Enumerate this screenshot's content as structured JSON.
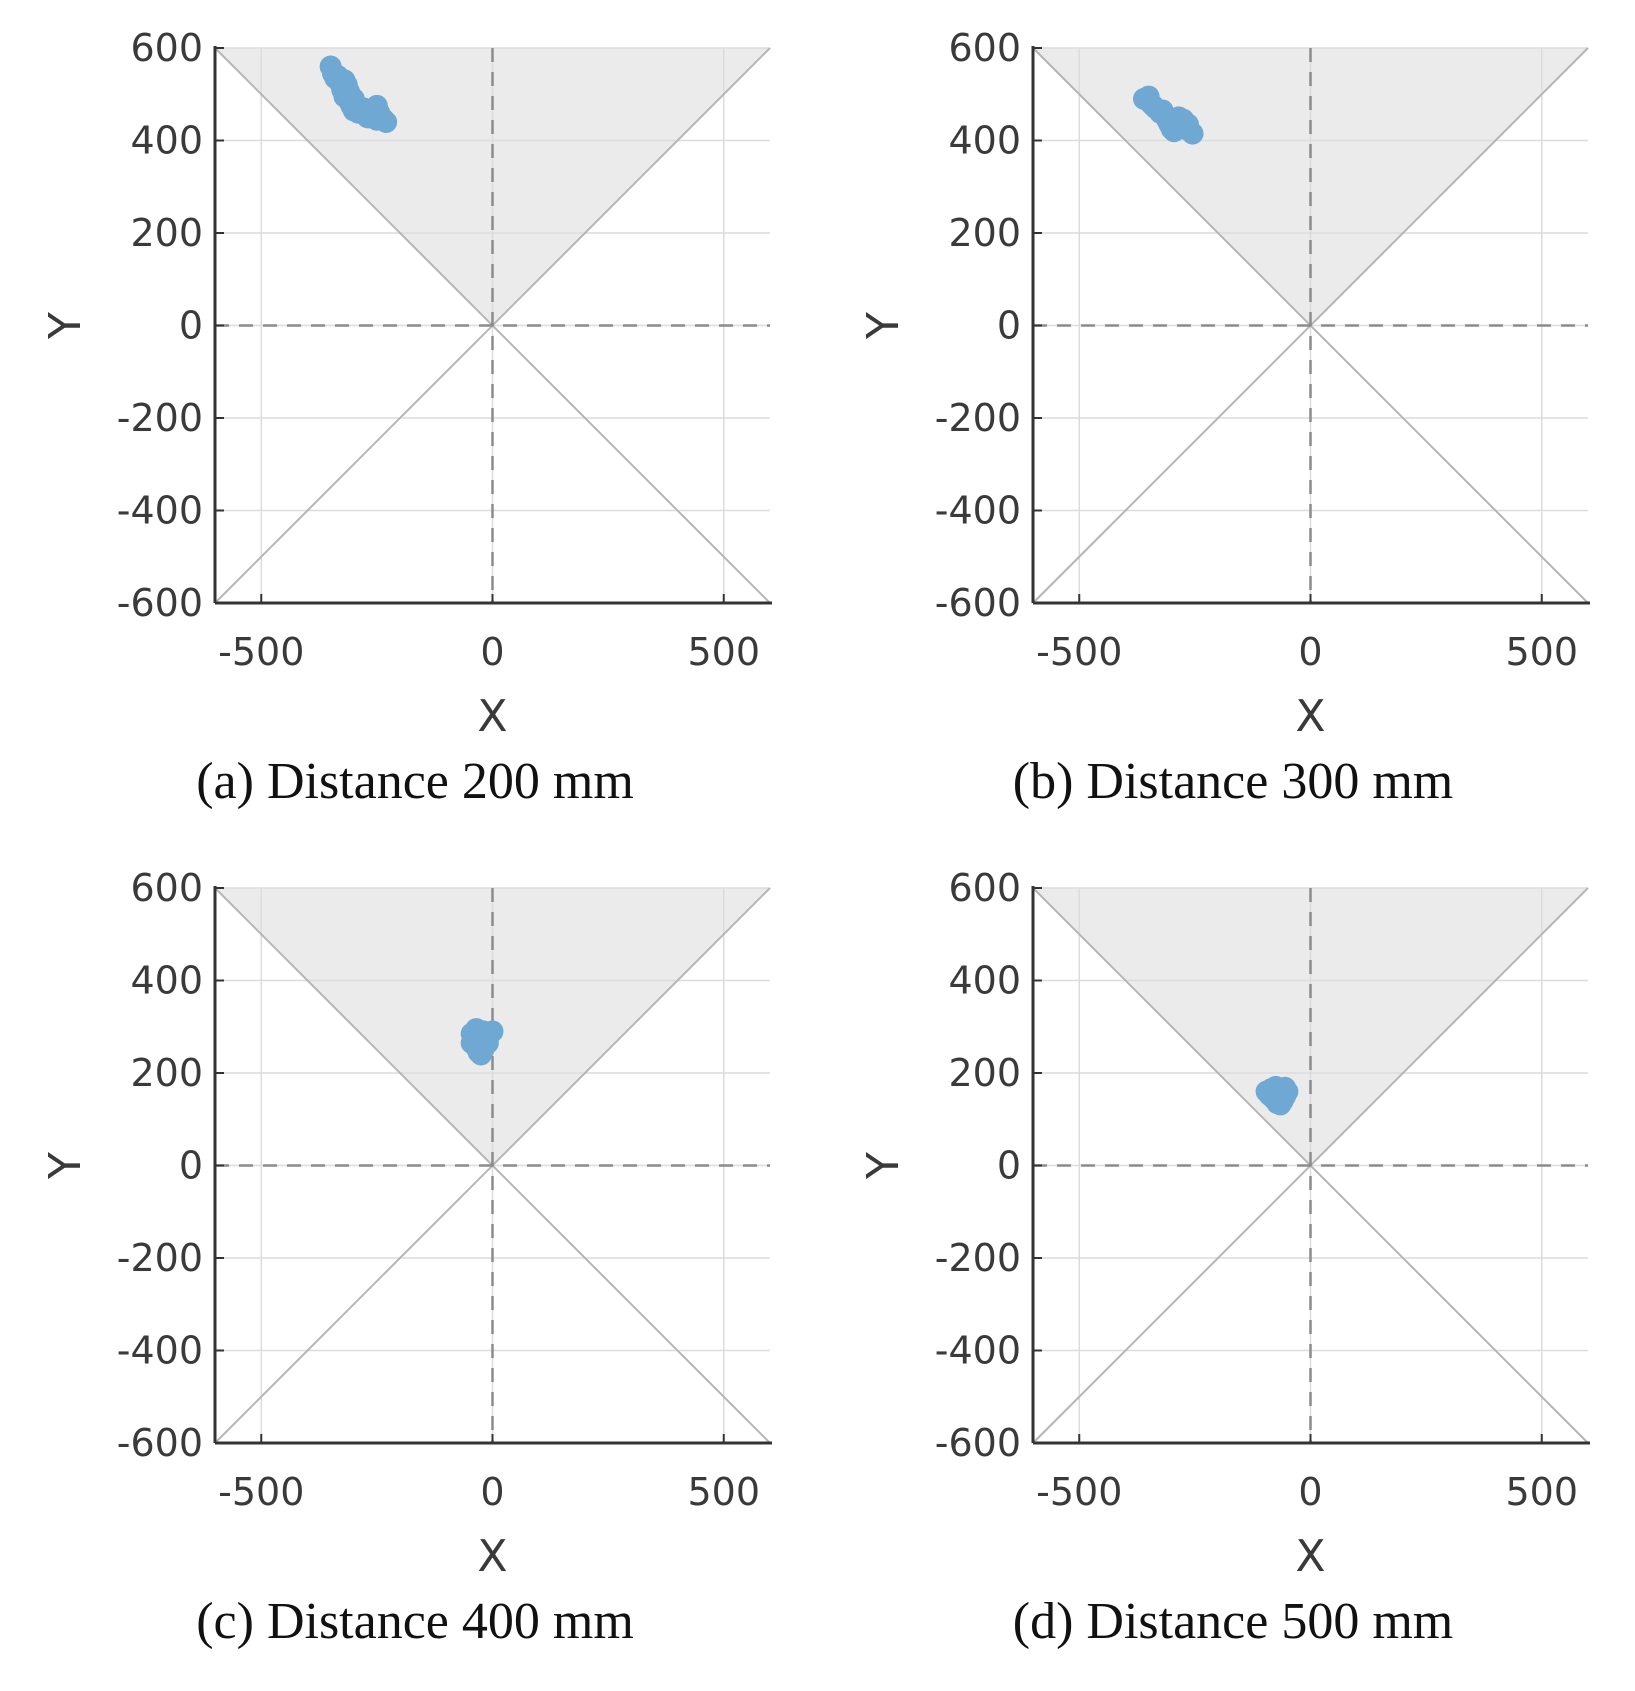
{
  "style": {
    "region_color": "#ebebeb",
    "point_color": "#6fa8d2",
    "axis_color": "#333333",
    "grid_color": "#dcdcdc",
    "diag_color": "#b5b5b5",
    "ref_line_color": "#8c8c8c"
  },
  "chart_data": [
    {
      "type": "scatter",
      "caption": "(a) Distance 200 mm",
      "xlabel": "X",
      "ylabel": "Y",
      "xlim": [
        -600,
        600
      ],
      "ylim": [
        -600,
        600
      ],
      "xticks": [
        -500,
        0,
        500
      ],
      "yticks": [
        600,
        400,
        200,
        0,
        -200,
        -400,
        -600
      ],
      "grid": true,
      "shaded_region": "upper wedge |x| <= y",
      "points": [
        [
          -350,
          560
        ],
        [
          -345,
          545
        ],
        [
          -340,
          535
        ],
        [
          -330,
          525
        ],
        [
          -320,
          530
        ],
        [
          -315,
          520
        ],
        [
          -325,
          510
        ],
        [
          -320,
          495
        ],
        [
          -310,
          485
        ],
        [
          -305,
          475
        ],
        [
          -300,
          465
        ],
        [
          -290,
          460
        ],
        [
          -280,
          470
        ],
        [
          -275,
          455
        ],
        [
          -265,
          450
        ],
        [
          -260,
          465
        ],
        [
          -250,
          475
        ],
        [
          -245,
          460
        ],
        [
          -240,
          450
        ],
        [
          -235,
          445
        ],
        [
          -230,
          440
        ],
        [
          -250,
          445
        ],
        [
          -270,
          450
        ],
        [
          -295,
          470
        ],
        [
          -310,
          505
        ],
        [
          -335,
          540
        ],
        [
          -300,
          490
        ]
      ]
    },
    {
      "type": "scatter",
      "caption": "(b) Distance 300 mm",
      "xlabel": "X",
      "ylabel": "Y",
      "xlim": [
        -600,
        600
      ],
      "ylim": [
        -600,
        600
      ],
      "xticks": [
        -500,
        0,
        500
      ],
      "yticks": [
        600,
        400,
        200,
        0,
        -200,
        -400,
        -600
      ],
      "grid": true,
      "shaded_region": "upper wedge |x| <= y",
      "points": [
        [
          -360,
          490
        ],
        [
          -350,
          495
        ],
        [
          -345,
          480
        ],
        [
          -335,
          470
        ],
        [
          -325,
          460
        ],
        [
          -315,
          455
        ],
        [
          -310,
          445
        ],
        [
          -305,
          435
        ],
        [
          -300,
          425
        ],
        [
          -295,
          420
        ],
        [
          -290,
          430
        ],
        [
          -280,
          440
        ],
        [
          -275,
          445
        ],
        [
          -270,
          425
        ],
        [
          -265,
          435
        ],
        [
          -260,
          420
        ],
        [
          -255,
          415
        ],
        [
          -285,
          450
        ],
        [
          -320,
          465
        ],
        [
          -340,
          475
        ],
        [
          -298,
          437
        ]
      ]
    },
    {
      "type": "scatter",
      "caption": "(c) Distance 400 mm",
      "xlabel": "X",
      "ylabel": "Y",
      "xlim": [
        -600,
        600
      ],
      "ylim": [
        -600,
        600
      ],
      "xticks": [
        -500,
        0,
        500
      ],
      "yticks": [
        600,
        400,
        200,
        0,
        -200,
        -400,
        -600
      ],
      "grid": true,
      "shaded_region": "upper wedge |x| <= y",
      "points": [
        [
          -45,
          285
        ],
        [
          -40,
          270
        ],
        [
          -35,
          255
        ],
        [
          -30,
          245
        ],
        [
          -25,
          240
        ],
        [
          -20,
          250
        ],
        [
          -15,
          260
        ],
        [
          -10,
          275
        ],
        [
          -5,
          285
        ],
        [
          0,
          290
        ],
        [
          -20,
          290
        ],
        [
          -35,
          295
        ],
        [
          -45,
          265
        ],
        [
          -30,
          270
        ],
        [
          -15,
          280
        ],
        [
          -25,
          260
        ],
        [
          -10,
          265
        ]
      ]
    },
    {
      "type": "scatter",
      "caption": "(d) Distance 500 mm",
      "xlabel": "X",
      "ylabel": "Y",
      "xlim": [
        -600,
        600
      ],
      "ylim": [
        -600,
        600
      ],
      "xticks": [
        -500,
        0,
        500
      ],
      "yticks": [
        600,
        400,
        200,
        0,
        -200,
        -400,
        -600
      ],
      "grid": true,
      "shaded_region": "upper wedge |x| <= y",
      "points": [
        [
          -95,
          160
        ],
        [
          -85,
          165
        ],
        [
          -75,
          170
        ],
        [
          -65,
          165
        ],
        [
          -55,
          168
        ],
        [
          -50,
          160
        ],
        [
          -55,
          150
        ],
        [
          -60,
          140
        ],
        [
          -65,
          132
        ],
        [
          -72,
          135
        ],
        [
          -80,
          145
        ],
        [
          -88,
          152
        ],
        [
          -70,
          155
        ],
        [
          -60,
          155
        ]
      ]
    }
  ]
}
